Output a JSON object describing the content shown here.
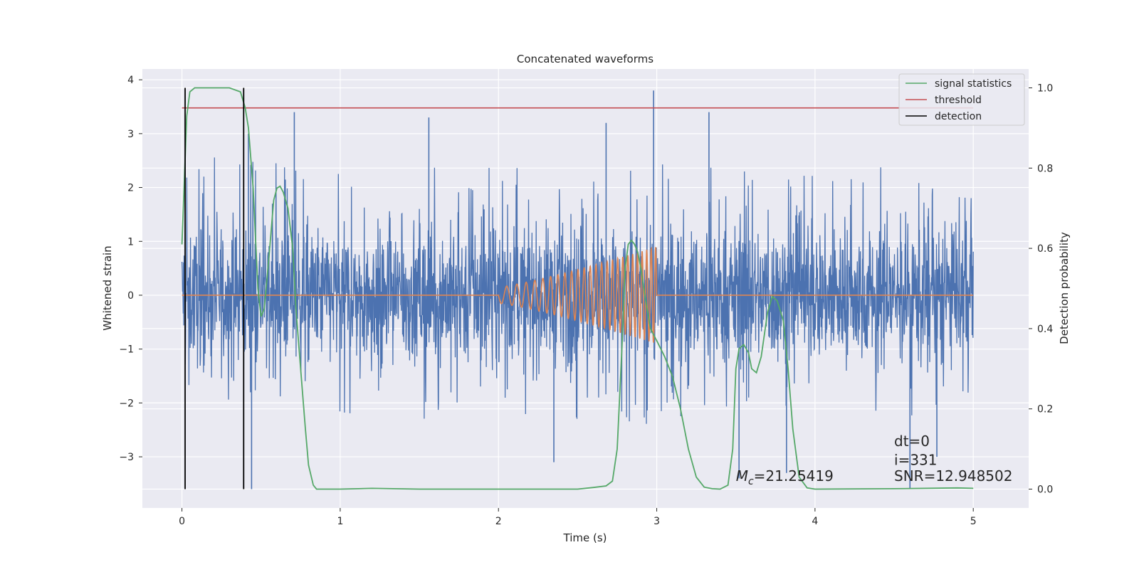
{
  "chart_data": {
    "type": "line",
    "title": "Concatenated waveforms",
    "xlabel": "Time (s)",
    "ylabel": "Whitened strain",
    "ylabel_right": "Detection probability",
    "xlim": [
      -0.25,
      5.35
    ],
    "ylim": [
      -3.95,
      4.2
    ],
    "ylim_right": [
      -0.047,
      1.047
    ],
    "x_ticks": [
      0,
      1,
      2,
      3,
      4,
      5
    ],
    "x_tick_labels": [
      "0",
      "1",
      "2",
      "3",
      "4",
      "5"
    ],
    "y_ticks": [
      4,
      3,
      2,
      1,
      0,
      -1,
      -2,
      -3
    ],
    "y_tick_labels": [
      "4",
      "3",
      "2",
      "1",
      "0",
      "−1",
      "−2",
      "−3"
    ],
    "y_right_ticks": [
      1.0,
      0.8,
      0.6,
      0.4,
      0.2,
      0.0
    ],
    "y_right_tick_labels": [
      "1.0",
      "0.8",
      "0.6",
      "0.4",
      "0.2",
      "0.0"
    ],
    "grid": true,
    "background": "#eaeaf2",
    "legend_position": "top-right",
    "legend": [
      {
        "label": "signal statistics",
        "color": "#55a868"
      },
      {
        "label": "threshold",
        "color": "#c44e52"
      },
      {
        "label": "detection",
        "color": "#000000"
      }
    ],
    "series": [
      {
        "key": "strain",
        "axis": "left",
        "color": "#4c72b0",
        "x_range": [
          0,
          5
        ],
        "noise_envelope": [
          {
            "x": 0.0,
            "max": 2.6,
            "min": -2.1
          },
          {
            "x": 0.5,
            "max": 2.5,
            "min": -2.3
          },
          {
            "x": 1.0,
            "max": 2.3,
            "min": -2.2
          },
          {
            "x": 1.5,
            "max": 2.4,
            "min": -2.3
          },
          {
            "x": 2.0,
            "max": 2.5,
            "min": -2.3
          },
          {
            "x": 2.5,
            "max": 2.5,
            "min": -2.4
          },
          {
            "x": 3.0,
            "max": 2.6,
            "min": -2.4
          },
          {
            "x": 3.5,
            "max": 2.4,
            "min": -2.3
          },
          {
            "x": 4.0,
            "max": 2.5,
            "min": -2.2
          },
          {
            "x": 4.5,
            "max": 2.4,
            "min": -2.3
          },
          {
            "x": 5.0,
            "max": 2.4,
            "min": -2.2
          }
        ],
        "spikes": [
          {
            "x": 0.42,
            "y": 3.0
          },
          {
            "x": 0.44,
            "y": -3.6
          },
          {
            "x": 0.71,
            "y": 3.4
          },
          {
            "x": 1.56,
            "y": 3.3
          },
          {
            "x": 2.35,
            "y": -3.1
          },
          {
            "x": 2.68,
            "y": 3.2
          },
          {
            "x": 2.98,
            "y": 3.8
          },
          {
            "x": 3.33,
            "y": 3.4
          },
          {
            "x": 3.52,
            "y": -3.4
          },
          {
            "x": 3.82,
            "y": -3.3
          },
          {
            "x": 4.6,
            "y": -3.6
          },
          {
            "x": 4.77,
            "y": -3.0
          }
        ]
      },
      {
        "key": "waveform",
        "axis": "left",
        "color": "#dd8452",
        "x_range": [
          0,
          5
        ],
        "chirp": {
          "start": 2.0,
          "end": 3.0,
          "amp_start": 0.15,
          "amp_end": 0.9,
          "cycles": 25
        }
      },
      {
        "key": "signal_statistics",
        "name": "signal statistics",
        "axis": "right",
        "color": "#55a868",
        "x": [
          0.0,
          0.03,
          0.05,
          0.08,
          0.1,
          0.2,
          0.3,
          0.37,
          0.4,
          0.42,
          0.45,
          0.48,
          0.5,
          0.52,
          0.55,
          0.58,
          0.6,
          0.62,
          0.64,
          0.67,
          0.7,
          0.72,
          0.75,
          0.78,
          0.8,
          0.83,
          0.85,
          0.9,
          1.0,
          1.2,
          1.5,
          2.0,
          2.5,
          2.6,
          2.68,
          2.72,
          2.75,
          2.78,
          2.8,
          2.82,
          2.84,
          2.86,
          2.88,
          2.9,
          2.93,
          2.96,
          3.0,
          3.05,
          3.1,
          3.15,
          3.2,
          3.25,
          3.3,
          3.35,
          3.4,
          3.45,
          3.48,
          3.5,
          3.52,
          3.55,
          3.58,
          3.6,
          3.63,
          3.66,
          3.7,
          3.73,
          3.76,
          3.8,
          3.83,
          3.86,
          3.9,
          3.95,
          4.0,
          4.5,
          4.9,
          5.0
        ],
        "y": [
          0.61,
          0.93,
          0.99,
          1.0,
          1.0,
          1.0,
          1.0,
          0.99,
          0.95,
          0.9,
          0.75,
          0.5,
          0.43,
          0.45,
          0.58,
          0.72,
          0.75,
          0.755,
          0.74,
          0.7,
          0.6,
          0.45,
          0.3,
          0.15,
          0.06,
          0.01,
          0.0,
          0.0,
          0.0,
          0.002,
          0.0,
          0.0,
          0.0,
          0.004,
          0.008,
          0.02,
          0.1,
          0.35,
          0.55,
          0.61,
          0.62,
          0.61,
          0.59,
          0.55,
          0.47,
          0.4,
          0.37,
          0.33,
          0.28,
          0.2,
          0.1,
          0.03,
          0.005,
          0.001,
          0.0,
          0.01,
          0.1,
          0.3,
          0.35,
          0.36,
          0.34,
          0.3,
          0.29,
          0.33,
          0.44,
          0.48,
          0.47,
          0.42,
          0.3,
          0.15,
          0.03,
          0.003,
          0.0,
          0.001,
          0.003,
          0.002
        ]
      },
      {
        "key": "threshold",
        "name": "threshold",
        "axis": "right",
        "color": "#c44e52",
        "x": [
          0,
          5
        ],
        "y": [
          0.95,
          0.95
        ]
      },
      {
        "key": "detection",
        "name": "detection",
        "axis": "right",
        "color": "#000000",
        "x": [
          0.02,
          0.39
        ],
        "y_span": [
          0,
          1
        ]
      }
    ],
    "annotations": [
      {
        "key": "mc",
        "x": 3.5,
        "y": 0.02,
        "axis": "right",
        "prefix": "M",
        "subscript": "c",
        "text": "=21.25419"
      },
      {
        "key": "dt",
        "x": 4.5,
        "y": 0.107,
        "axis": "right",
        "text": "dt=0"
      },
      {
        "key": "i",
        "x": 4.5,
        "y": 0.06,
        "axis": "right",
        "text": "i=331"
      },
      {
        "key": "snr",
        "x": 4.5,
        "y": 0.02,
        "axis": "right",
        "text": "SNR=12.948502"
      }
    ]
  }
}
